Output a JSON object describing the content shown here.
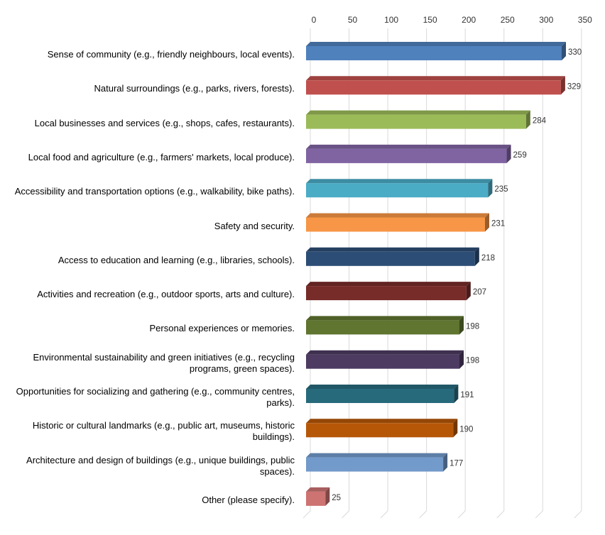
{
  "chart_data": {
    "type": "bar",
    "orientation": "horizontal",
    "title": "",
    "xlabel": "",
    "ylabel": "",
    "xlim": [
      0,
      350
    ],
    "ticks": [
      "0",
      "50",
      "100",
      "150",
      "200",
      "250",
      "300",
      "350"
    ],
    "tick_values": [
      0,
      50,
      100,
      150,
      200,
      250,
      300,
      350
    ],
    "grid": true,
    "axis_position": "top",
    "style": "3d",
    "categories": [
      "Sense of community (e.g., friendly neighbours, local events).",
      "Natural surroundings (e.g., parks, rivers, forests).",
      "Local businesses and services (e.g., shops, cafes, restaurants).",
      "Local food and agriculture (e.g., farmers' markets, local produce).",
      "Accessibility and transportation options (e.g., walkability, bike paths).",
      "Safety and security.",
      "Access to education and learning (e.g., libraries, schools).",
      "Activities and recreation (e.g., outdoor sports, arts and culture).",
      "Personal experiences or memories.",
      "Environmental sustainability and green initiatives (e.g., recycling programs, green spaces).",
      "Opportunities for socializing and gathering (e.g., community centres, parks).",
      "Historic or cultural landmarks (e.g., public art, museums, historic buildings).",
      "Architecture and design of buildings (e.g., unique buildings, public spaces).",
      "Other (please specify)."
    ],
    "values": [
      330,
      329,
      284,
      259,
      235,
      231,
      218,
      207,
      198,
      198,
      191,
      190,
      177,
      25
    ],
    "value_labels": [
      "330",
      "329",
      "284",
      "259",
      "235",
      "231",
      "218",
      "207",
      "198",
      "198",
      "191",
      "190",
      "177",
      "25"
    ],
    "colors": [
      "#4F81BD",
      "#C0504D",
      "#9BBB59",
      "#8064A2",
      "#4BACC6",
      "#F79646",
      "#2C4D75",
      "#772C2A",
      "#5F7530",
      "#4D3B62",
      "#276A7C",
      "#B65708",
      "#729ACA",
      "#CD7371"
    ]
  }
}
